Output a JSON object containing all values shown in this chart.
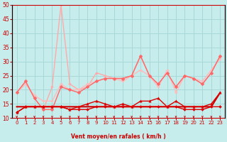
{
  "xlabel": "Vent moyen/en rafales ( km/h )",
  "xlim": [
    -0.5,
    23.5
  ],
  "ylim": [
    10,
    50
  ],
  "yticks": [
    10,
    15,
    20,
    25,
    30,
    35,
    40,
    45,
    50
  ],
  "xticks": [
    0,
    1,
    2,
    3,
    4,
    5,
    6,
    7,
    8,
    9,
    10,
    11,
    12,
    13,
    14,
    15,
    16,
    17,
    18,
    19,
    20,
    21,
    22,
    23
  ],
  "bg_color": "#c6ecec",
  "grid_color": "#a8d8d8",
  "series": [
    {
      "y": [
        12,
        14,
        14,
        14,
        14,
        14,
        13,
        13,
        13,
        14,
        14,
        14,
        14,
        14,
        14,
        14,
        14,
        14,
        14,
        13,
        13,
        13,
        14,
        14
      ],
      "color": "#dd0000",
      "lw": 1.0,
      "marker": "D",
      "ms": 2.0,
      "alpha": 1.0,
      "zorder": 6
    },
    {
      "y": [
        12,
        14,
        14,
        14,
        14,
        14,
        13,
        14,
        15,
        16,
        15,
        14,
        15,
        14,
        16,
        16,
        17,
        14,
        16,
        14,
        14,
        14,
        15,
        19
      ],
      "color": "#dd0000",
      "lw": 1.0,
      "marker": "^",
      "ms": 2.5,
      "alpha": 1.0,
      "zorder": 6
    },
    {
      "y": [
        14,
        14,
        14,
        14,
        14,
        14,
        14,
        14,
        14,
        14,
        14,
        14,
        14,
        14,
        14,
        14,
        14,
        14,
        14,
        14,
        14,
        14,
        14,
        19
      ],
      "color": "#cc0000",
      "lw": 1.5,
      "marker": null,
      "ms": 0,
      "alpha": 1.0,
      "zorder": 4
    },
    {
      "y": [
        19,
        23,
        17,
        13,
        13,
        21,
        20,
        19,
        21,
        23,
        24,
        24,
        24,
        25,
        32,
        25,
        22,
        26,
        21,
        25,
        24,
        22,
        26,
        32
      ],
      "color": "#ff6666",
      "lw": 1.0,
      "marker": "D",
      "ms": 2.5,
      "alpha": 1.0,
      "zorder": 3
    },
    {
      "y": [
        19,
        23,
        17,
        13,
        21,
        50,
        22,
        20,
        21,
        26,
        25,
        24,
        24,
        25,
        32,
        25,
        22,
        26,
        21,
        25,
        24,
        22,
        26,
        32
      ],
      "color": "#ffaaaa",
      "lw": 1.0,
      "marker": "D",
      "ms": 1.8,
      "alpha": 1.0,
      "zorder": 2
    },
    {
      "y": [
        19,
        22,
        18,
        16,
        16,
        22,
        20,
        20,
        22,
        23,
        24,
        24,
        23,
        25,
        27,
        25,
        21,
        27,
        19,
        25,
        24,
        23,
        27,
        31
      ],
      "color": "#ffbbbb",
      "lw": 1.0,
      "marker": "D",
      "ms": 1.8,
      "alpha": 1.0,
      "zorder": 2
    }
  ],
  "arrow_color": "#cc0000",
  "arrow_angles": [
    225,
    210,
    210,
    195,
    195,
    195,
    210,
    210,
    225,
    225,
    225,
    225,
    210,
    210,
    210,
    210,
    210,
    210,
    210,
    210,
    210,
    210,
    210,
    195
  ]
}
